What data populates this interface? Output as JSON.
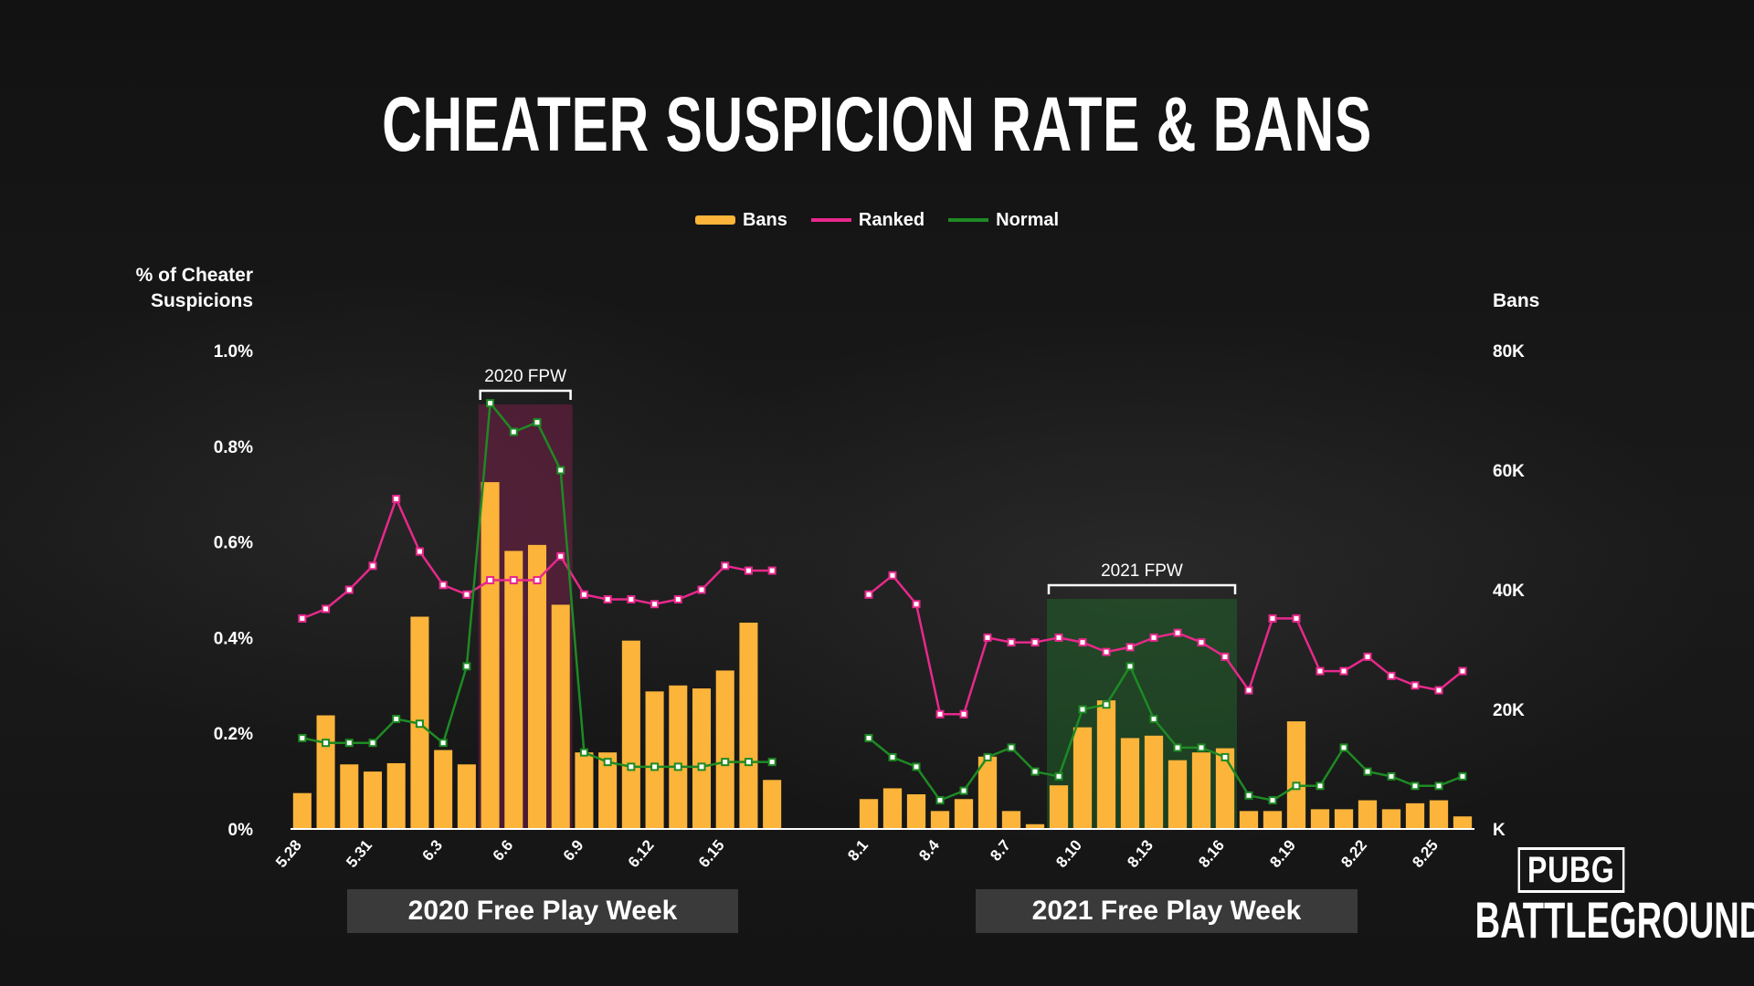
{
  "title": "CHEATER SUSPICION RATE & BANS",
  "legend": {
    "bans": "Bans",
    "ranked": "Ranked",
    "normal": "Normal"
  },
  "axes": {
    "left_title_line1": "% of Cheater",
    "left_title_line2": "Suspicions",
    "right_title": "Bans"
  },
  "sections": {
    "left": "2020 Free Play Week",
    "right": "2021 Free Play Week"
  },
  "fpw_labels": {
    "y2020": "2020 FPW",
    "y2021": "2021 FPW"
  },
  "logo": {
    "top": "PUBG",
    "bottom": "BATTLEGROUNDS"
  },
  "colors": {
    "bans": "#fcb43a",
    "ranked": "#e8288c",
    "normal": "#1e8a24",
    "fpw2020": "#8a1e52",
    "fpw2021": "#1f6e2a"
  },
  "chart_data": {
    "type": "bar",
    "y_left": {
      "ticks": [
        "0%",
        "0.2%",
        "0.4%",
        "0.6%",
        "0.8%",
        "1.0%"
      ],
      "ylim": [
        0,
        1.0
      ]
    },
    "y_right": {
      "ticks": [
        "K",
        "20K",
        "40K",
        "60K",
        "80K"
      ],
      "ylim": [
        0,
        80000
      ]
    },
    "groups": [
      {
        "name": "2020 Free Play Week",
        "x_labels": [
          "5.28",
          "5.31",
          "6.3",
          "6.6",
          "6.9",
          "6.12",
          "6.15"
        ],
        "x_label_every": 3,
        "fpw_range": [
          8,
          11
        ],
        "bans": [
          6000,
          19000,
          10800,
          9600,
          11000,
          35500,
          13200,
          10800,
          58000,
          46500,
          47500,
          37500,
          12800,
          12800,
          31500,
          23000,
          24000,
          23500,
          26500,
          34500,
          8200
        ],
        "ranked": [
          0.44,
          0.46,
          0.5,
          0.55,
          0.69,
          0.58,
          0.51,
          0.49,
          0.52,
          0.52,
          0.52,
          0.57,
          0.49,
          0.48,
          0.48,
          0.47,
          0.48,
          0.5,
          0.55,
          0.54,
          0.54
        ],
        "normal": [
          0.19,
          0.18,
          0.18,
          0.18,
          0.23,
          0.22,
          0.18,
          0.34,
          0.89,
          0.83,
          0.85,
          0.75,
          0.16,
          0.14,
          0.13,
          0.13,
          0.13,
          0.13,
          0.14,
          0.14,
          0.14
        ]
      },
      {
        "name": "2021 Free Play Week",
        "x_labels": [
          "8.1",
          "8.4",
          "8.7",
          "8.10",
          "8.13",
          "8.16",
          "8.19",
          "8.22",
          "8.25"
        ],
        "x_label_every": 3,
        "fpw_range": [
          8,
          15
        ],
        "bans": [
          5000,
          6800,
          5800,
          3000,
          5000,
          12100,
          3000,
          800,
          7300,
          17000,
          21500,
          15200,
          15600,
          11500,
          12800,
          13500,
          3000,
          3000,
          18000,
          3300,
          3300,
          4800,
          3300,
          4300,
          4800,
          2100
        ],
        "ranked": [
          0.49,
          0.53,
          0.47,
          0.24,
          0.24,
          0.4,
          0.39,
          0.39,
          0.4,
          0.39,
          0.37,
          0.38,
          0.4,
          0.41,
          0.39,
          0.36,
          0.29,
          0.44,
          0.44,
          0.33,
          0.33,
          0.36,
          0.32,
          0.3,
          0.29,
          0.33
        ],
        "normal": [
          0.19,
          0.15,
          0.13,
          0.06,
          0.08,
          0.15,
          0.17,
          0.12,
          0.11,
          0.25,
          0.26,
          0.34,
          0.23,
          0.17,
          0.17,
          0.15,
          0.07,
          0.06,
          0.09,
          0.09,
          0.17,
          0.12,
          0.11,
          0.09,
          0.09,
          0.11
        ]
      }
    ]
  }
}
